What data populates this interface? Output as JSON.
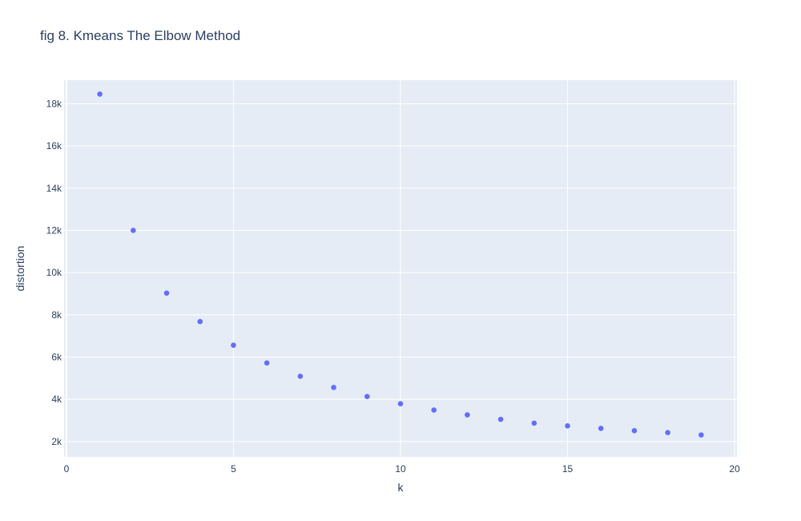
{
  "chart_data": {
    "type": "scatter",
    "title": "fig 8. Kmeans The Elbow Method",
    "xlabel": "k",
    "ylabel": "distortion",
    "xlim": [
      -0.07,
      20.07
    ],
    "ylim": [
      1270,
      19120
    ],
    "x_ticks": [
      {
        "value": 0,
        "label": "0"
      },
      {
        "value": 5,
        "label": "5"
      },
      {
        "value": 10,
        "label": "10"
      },
      {
        "value": 15,
        "label": "15"
      },
      {
        "value": 20,
        "label": "20"
      }
    ],
    "y_ticks": [
      {
        "value": 2000,
        "label": "2k"
      },
      {
        "value": 4000,
        "label": "4k"
      },
      {
        "value": 6000,
        "label": "6k"
      },
      {
        "value": 8000,
        "label": "8k"
      },
      {
        "value": 10000,
        "label": "10k"
      },
      {
        "value": 12000,
        "label": "12k"
      },
      {
        "value": 14000,
        "label": "14k"
      },
      {
        "value": 16000,
        "label": "16k"
      },
      {
        "value": 18000,
        "label": "18k"
      }
    ],
    "grid": true,
    "legend": "none",
    "colors": {
      "plot_background": "#e5ecf6",
      "grid": "#ffffff",
      "marker": "#636efa",
      "text": "#2a3f5f"
    },
    "x": [
      1,
      2,
      3,
      4,
      5,
      6,
      7,
      8,
      9,
      10,
      11,
      12,
      13,
      14,
      15,
      16,
      17,
      18,
      19
    ],
    "y": [
      18460,
      12000,
      9030,
      7680,
      6560,
      5720,
      5090,
      4560,
      4130,
      3790,
      3490,
      3260,
      3050,
      2870,
      2740,
      2620,
      2510,
      2420,
      2310
    ]
  }
}
